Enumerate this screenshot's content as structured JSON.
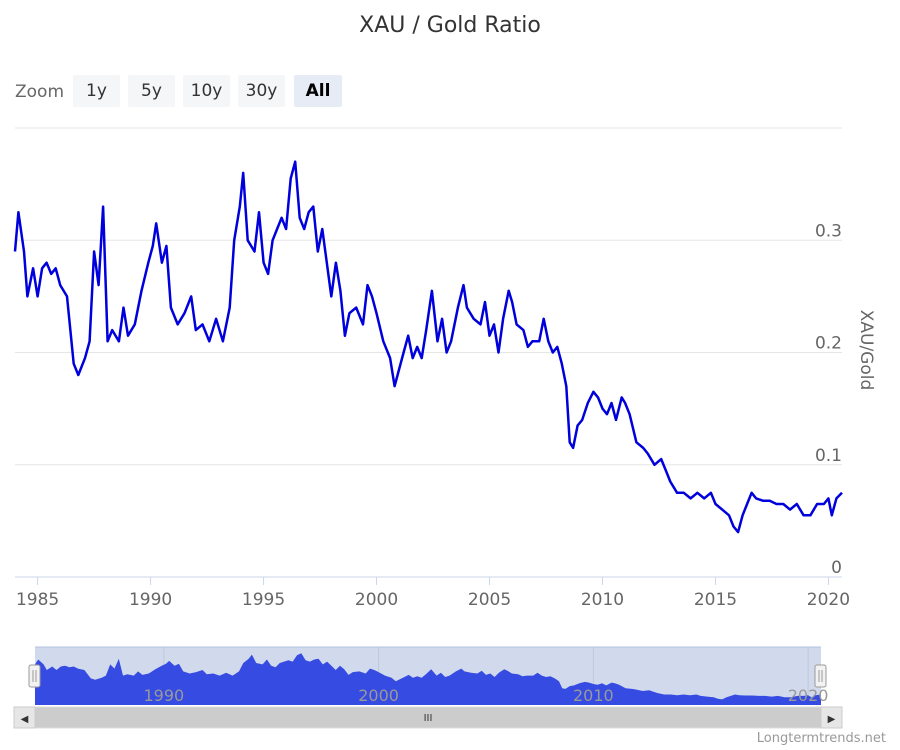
{
  "chart_data": {
    "type": "line",
    "title": "XAU / Gold Ratio",
    "ylabel": "XAU/Gold",
    "xlim": [
      1984.0,
      2020.6
    ],
    "ylim": [
      0,
      0.4
    ],
    "x_ticks": [
      "1985",
      "1990",
      "1995",
      "2000",
      "2005",
      "2010",
      "2015",
      "2020"
    ],
    "y_ticks": [
      "0",
      "0.1",
      "0.2",
      "0.3"
    ],
    "grid": true,
    "legend": "none",
    "series": [
      {
        "color": "#0000dd",
        "points": [
          [
            1984.0,
            0.29
          ],
          [
            1984.15,
            0.325
          ],
          [
            1984.4,
            0.29
          ],
          [
            1984.55,
            0.25
          ],
          [
            1984.8,
            0.275
          ],
          [
            1985.0,
            0.25
          ],
          [
            1985.2,
            0.275
          ],
          [
            1985.4,
            0.28
          ],
          [
            1985.6,
            0.27
          ],
          [
            1985.8,
            0.275
          ],
          [
            1986.0,
            0.26
          ],
          [
            1986.3,
            0.25
          ],
          [
            1986.6,
            0.19
          ],
          [
            1986.8,
            0.18
          ],
          [
            1987.1,
            0.195
          ],
          [
            1987.3,
            0.21
          ],
          [
            1987.5,
            0.29
          ],
          [
            1987.7,
            0.26
          ],
          [
            1987.9,
            0.33
          ],
          [
            1988.1,
            0.21
          ],
          [
            1988.3,
            0.22
          ],
          [
            1988.6,
            0.21
          ],
          [
            1988.8,
            0.24
          ],
          [
            1989.0,
            0.215
          ],
          [
            1989.3,
            0.225
          ],
          [
            1989.6,
            0.255
          ],
          [
            1989.9,
            0.28
          ],
          [
            1990.1,
            0.295
          ],
          [
            1990.25,
            0.315
          ],
          [
            1990.5,
            0.28
          ],
          [
            1990.7,
            0.295
          ],
          [
            1990.9,
            0.24
          ],
          [
            1991.2,
            0.225
          ],
          [
            1991.5,
            0.235
          ],
          [
            1991.8,
            0.25
          ],
          [
            1992.0,
            0.22
          ],
          [
            1992.3,
            0.225
          ],
          [
            1992.6,
            0.21
          ],
          [
            1992.9,
            0.23
          ],
          [
            1993.2,
            0.21
          ],
          [
            1993.5,
            0.24
          ],
          [
            1993.7,
            0.3
          ],
          [
            1993.95,
            0.33
          ],
          [
            1994.1,
            0.36
          ],
          [
            1994.3,
            0.3
          ],
          [
            1994.6,
            0.29
          ],
          [
            1994.8,
            0.325
          ],
          [
            1995.0,
            0.28
          ],
          [
            1995.2,
            0.27
          ],
          [
            1995.4,
            0.3
          ],
          [
            1995.6,
            0.31
          ],
          [
            1995.8,
            0.32
          ],
          [
            1996.0,
            0.31
          ],
          [
            1996.2,
            0.355
          ],
          [
            1996.4,
            0.37
          ],
          [
            1996.6,
            0.32
          ],
          [
            1996.8,
            0.31
          ],
          [
            1997.0,
            0.325
          ],
          [
            1997.2,
            0.33
          ],
          [
            1997.4,
            0.29
          ],
          [
            1997.6,
            0.31
          ],
          [
            1997.8,
            0.28
          ],
          [
            1998.0,
            0.25
          ],
          [
            1998.2,
            0.28
          ],
          [
            1998.4,
            0.255
          ],
          [
            1998.6,
            0.215
          ],
          [
            1998.8,
            0.235
          ],
          [
            1999.1,
            0.24
          ],
          [
            1999.4,
            0.225
          ],
          [
            1999.6,
            0.26
          ],
          [
            1999.8,
            0.25
          ],
          [
            2000.0,
            0.235
          ],
          [
            2000.3,
            0.21
          ],
          [
            2000.6,
            0.195
          ],
          [
            2000.8,
            0.17
          ],
          [
            2001.0,
            0.185
          ],
          [
            2001.2,
            0.2
          ],
          [
            2001.4,
            0.215
          ],
          [
            2001.6,
            0.195
          ],
          [
            2001.8,
            0.205
          ],
          [
            2002.0,
            0.195
          ],
          [
            2002.2,
            0.22
          ],
          [
            2002.45,
            0.255
          ],
          [
            2002.7,
            0.21
          ],
          [
            2002.9,
            0.23
          ],
          [
            2003.1,
            0.2
          ],
          [
            2003.3,
            0.21
          ],
          [
            2003.6,
            0.24
          ],
          [
            2003.85,
            0.26
          ],
          [
            2004.0,
            0.24
          ],
          [
            2004.3,
            0.23
          ],
          [
            2004.6,
            0.225
          ],
          [
            2004.8,
            0.245
          ],
          [
            2005.0,
            0.215
          ],
          [
            2005.2,
            0.225
          ],
          [
            2005.4,
            0.2
          ],
          [
            2005.6,
            0.23
          ],
          [
            2005.85,
            0.255
          ],
          [
            2006.0,
            0.245
          ],
          [
            2006.2,
            0.225
          ],
          [
            2006.5,
            0.22
          ],
          [
            2006.7,
            0.205
          ],
          [
            2006.9,
            0.21
          ],
          [
            2007.2,
            0.21
          ],
          [
            2007.4,
            0.23
          ],
          [
            2007.6,
            0.21
          ],
          [
            2007.8,
            0.2
          ],
          [
            2008.0,
            0.205
          ],
          [
            2008.2,
            0.19
          ],
          [
            2008.4,
            0.17
          ],
          [
            2008.55,
            0.12
          ],
          [
            2008.7,
            0.115
          ],
          [
            2008.9,
            0.135
          ],
          [
            2009.1,
            0.14
          ],
          [
            2009.35,
            0.155
          ],
          [
            2009.6,
            0.165
          ],
          [
            2009.8,
            0.16
          ],
          [
            2010.0,
            0.15
          ],
          [
            2010.2,
            0.145
          ],
          [
            2010.4,
            0.155
          ],
          [
            2010.6,
            0.14
          ],
          [
            2010.85,
            0.16
          ],
          [
            2011.0,
            0.155
          ],
          [
            2011.2,
            0.145
          ],
          [
            2011.5,
            0.12
          ],
          [
            2011.8,
            0.115
          ],
          [
            2012.0,
            0.11
          ],
          [
            2012.3,
            0.1
          ],
          [
            2012.6,
            0.105
          ],
          [
            2012.8,
            0.095
          ],
          [
            2013.0,
            0.085
          ],
          [
            2013.3,
            0.075
          ],
          [
            2013.6,
            0.075
          ],
          [
            2013.9,
            0.07
          ],
          [
            2014.2,
            0.075
          ],
          [
            2014.5,
            0.07
          ],
          [
            2014.8,
            0.075
          ],
          [
            2015.0,
            0.065
          ],
          [
            2015.3,
            0.06
          ],
          [
            2015.6,
            0.055
          ],
          [
            2015.8,
            0.045
          ],
          [
            2016.0,
            0.04
          ],
          [
            2016.2,
            0.055
          ],
          [
            2016.4,
            0.065
          ],
          [
            2016.6,
            0.075
          ],
          [
            2016.8,
            0.07
          ],
          [
            2017.1,
            0.068
          ],
          [
            2017.4,
            0.068
          ],
          [
            2017.7,
            0.065
          ],
          [
            2018.0,
            0.065
          ],
          [
            2018.3,
            0.06
          ],
          [
            2018.6,
            0.065
          ],
          [
            2018.9,
            0.055
          ],
          [
            2019.2,
            0.055
          ],
          [
            2019.5,
            0.065
          ],
          [
            2019.8,
            0.065
          ],
          [
            2020.0,
            0.07
          ],
          [
            2020.15,
            0.055
          ],
          [
            2020.35,
            0.07
          ],
          [
            2020.6,
            0.075
          ]
        ]
      }
    ],
    "navigator": {
      "x_ticks": [
        "1990",
        "2000",
        "2010",
        "2020"
      ]
    }
  },
  "zoom": {
    "label": "Zoom",
    "buttons": [
      "1y",
      "5y",
      "10y",
      "30y",
      "All"
    ],
    "active": "All"
  },
  "scrollbar": {
    "left_arrow": "◀",
    "right_arrow": "▶",
    "grip": "III"
  },
  "credits": "Longtermtrends.net",
  "colors": {
    "line": "#0000dd",
    "navigator_fill": "#2233ee",
    "navigator_mask": "rgba(102,133,194,0.3)",
    "grid": "#e6e6e6"
  }
}
